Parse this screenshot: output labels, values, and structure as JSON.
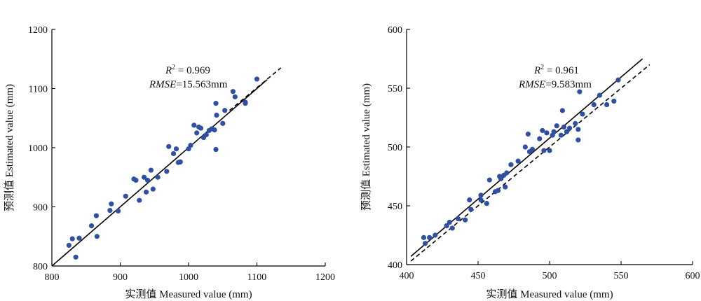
{
  "chart_data": [
    {
      "type": "scatter",
      "xlabel": "实测值 Measured value (mm)",
      "ylabel": "预测值 Estimated value (mm)",
      "xlim": [
        800,
        1200
      ],
      "ylim": [
        800,
        1200
      ],
      "xticks": [
        "800",
        "900",
        "1000",
        "1100",
        "1200"
      ],
      "yticks": [
        "800",
        "900",
        "1000",
        "1100",
        "1200"
      ],
      "annotations": {
        "r2_prefix": "R",
        "r2_sup": "2",
        "r2_value": " = 0.969",
        "rmse_prefix": "RMSE",
        "rmse_value": "=15.563mm"
      },
      "fit_line": {
        "style": "solid",
        "x": [
          800,
          1115
        ],
        "y": [
          800,
          1115
        ]
      },
      "one_to_one_line": {
        "style": "dashed",
        "x": [
          1060,
          1135
        ],
        "y": [
          1063,
          1135
        ]
      },
      "grid": false,
      "marker_color": "#2f4fa3",
      "points": [
        [
          825,
          835
        ],
        [
          830,
          846
        ],
        [
          835,
          815
        ],
        [
          840,
          847
        ],
        [
          858,
          868
        ],
        [
          865,
          885
        ],
        [
          866,
          850
        ],
        [
          885,
          894
        ],
        [
          887,
          905
        ],
        [
          897,
          893
        ],
        [
          908,
          918
        ],
        [
          920,
          947
        ],
        [
          923,
          945
        ],
        [
          928,
          911
        ],
        [
          935,
          950
        ],
        [
          938,
          925
        ],
        [
          940,
          945
        ],
        [
          945,
          962
        ],
        [
          948,
          930
        ],
        [
          955,
          950
        ],
        [
          968,
          960
        ],
        [
          971,
          1002
        ],
        [
          978,
          990
        ],
        [
          982,
          998
        ],
        [
          985,
          975
        ],
        [
          988,
          976
        ],
        [
          1000,
          998
        ],
        [
          1003,
          1004
        ],
        [
          1008,
          1038
        ],
        [
          1012,
          1025
        ],
        [
          1015,
          1035
        ],
        [
          1018,
          1033
        ],
        [
          1022,
          1017
        ],
        [
          1026,
          1022
        ],
        [
          1030,
          1029
        ],
        [
          1034,
          1032
        ],
        [
          1038,
          1030
        ],
        [
          1040,
          997
        ],
        [
          1040,
          1075
        ],
        [
          1041,
          1055
        ],
        [
          1050,
          1041
        ],
        [
          1053,
          1063
        ],
        [
          1065,
          1095
        ],
        [
          1068,
          1086
        ],
        [
          1083,
          1077
        ],
        [
          1083,
          1075
        ],
        [
          1100,
          1116
        ]
      ]
    },
    {
      "type": "scatter",
      "xlabel": "实测值 Measured value (mm)",
      "ylabel": "预测值 Estimated value (mm)",
      "xlim": [
        400,
        600
      ],
      "ylim": [
        400,
        600
      ],
      "xticks": [
        "400",
        "450",
        "500",
        "550",
        "600"
      ],
      "yticks": [
        "400",
        "450",
        "500",
        "550",
        "600"
      ],
      "annotations": {
        "r2_prefix": "R",
        "r2_sup": "2",
        "r2_value": " = 0.961",
        "rmse_prefix": "RMSE",
        "rmse_value": "=9.583mm"
      },
      "fit_line": {
        "style": "solid",
        "x": [
          403,
          565
        ],
        "y": [
          407,
          575
        ]
      },
      "one_to_one_line": {
        "style": "dashed",
        "x": [
          403,
          570
        ],
        "y": [
          403,
          570
        ]
      },
      "grid": false,
      "marker_color": "#2f4fa3",
      "points": [
        [
          412,
          423
        ],
        [
          413,
          418
        ],
        [
          416,
          423
        ],
        [
          420,
          425
        ],
        [
          428,
          433
        ],
        [
          430,
          436
        ],
        [
          432,
          431
        ],
        [
          436,
          439
        ],
        [
          441,
          438
        ],
        [
          444,
          455
        ],
        [
          445,
          447
        ],
        [
          452,
          455
        ],
        [
          452,
          459
        ],
        [
          456,
          452
        ],
        [
          458,
          472
        ],
        [
          462,
          462
        ],
        [
          464,
          463
        ],
        [
          465,
          475
        ],
        [
          466,
          473
        ],
        [
          468,
          476
        ],
        [
          469,
          466
        ],
        [
          470,
          478
        ],
        [
          473,
          485
        ],
        [
          478,
          488
        ],
        [
          483,
          500
        ],
        [
          485,
          511
        ],
        [
          486,
          496
        ],
        [
          488,
          498
        ],
        [
          493,
          507
        ],
        [
          495,
          514
        ],
        [
          496,
          497
        ],
        [
          498,
          512
        ],
        [
          500,
          497
        ],
        [
          502,
          510
        ],
        [
          503,
          513
        ],
        [
          505,
          518
        ],
        [
          508,
          510
        ],
        [
          509,
          531
        ],
        [
          510,
          517
        ],
        [
          512,
          513
        ],
        [
          514,
          516
        ],
        [
          518,
          520
        ],
        [
          520,
          506
        ],
        [
          520,
          515
        ],
        [
          521,
          547
        ],
        [
          523,
          528
        ],
        [
          531,
          536
        ],
        [
          535,
          544
        ],
        [
          540,
          536
        ],
        [
          545,
          539
        ],
        [
          548,
          557
        ]
      ]
    }
  ]
}
